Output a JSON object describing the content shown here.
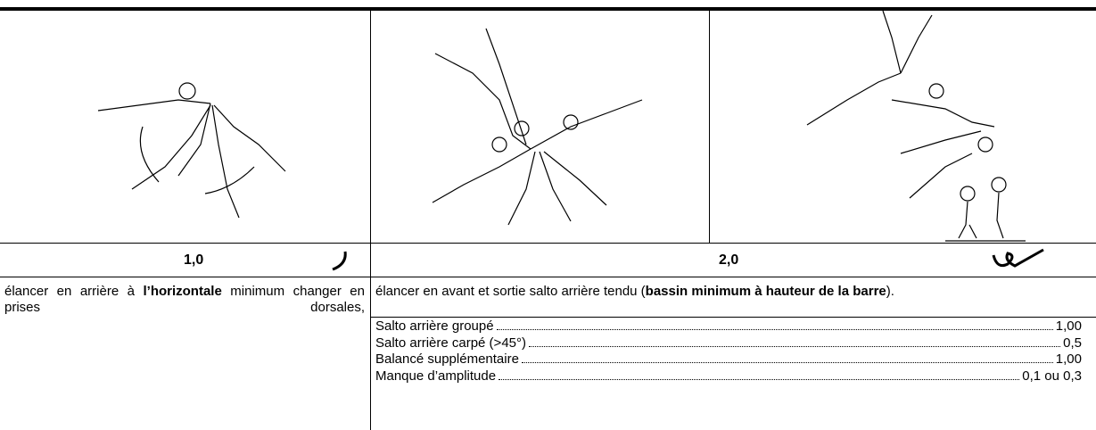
{
  "value_row": {
    "left": "1,0",
    "right": "2,0"
  },
  "descriptions": {
    "left": [
      {
        "text": "élancer en arrière à ",
        "bold": false
      },
      {
        "text": "l’horizontale",
        "bold": true
      },
      {
        "text": " minimum changer en prises dorsales,",
        "bold": false
      }
    ],
    "right": [
      {
        "text": "élancer en avant et sortie salto arrière tendu (",
        "bold": false
      },
      {
        "text": "bassin minimum à hauteur de la barre",
        "bold": true
      },
      {
        "text": ").",
        "bold": false
      }
    ]
  },
  "deductions": [
    {
      "label": "Salto arrière groupé",
      "value": "1,00"
    },
    {
      "label": "Salto arrière carpé (>45°)",
      "value": "0,5"
    },
    {
      "label": "Balancé supplémentaire",
      "value": "1,00"
    },
    {
      "label": "Manque d’amplitude",
      "value": "0,1 ou 0,3"
    }
  ]
}
